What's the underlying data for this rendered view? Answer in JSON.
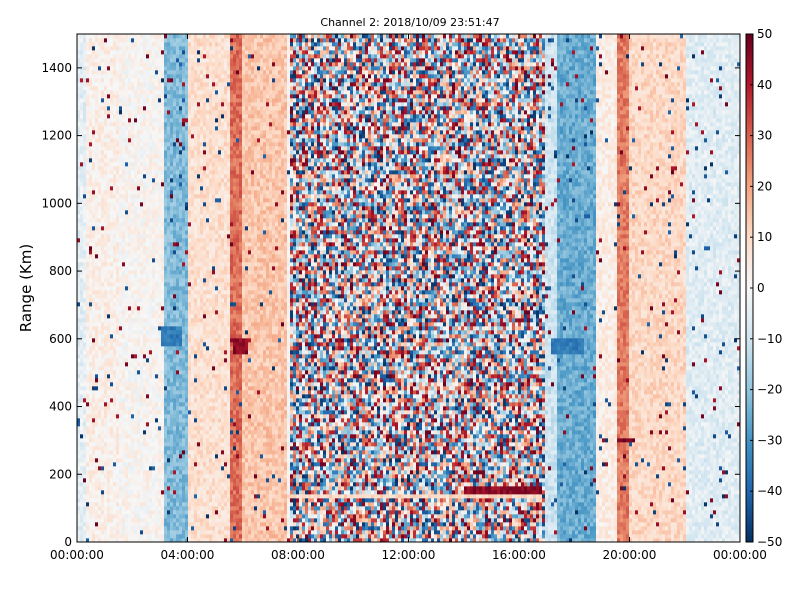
{
  "chart_data": {
    "type": "heatmap",
    "title": "Channel 2: 2018/10/09 23:51:47",
    "xlabel": "",
    "ylabel": "Range (Km)",
    "x_tick_labels": [
      "00:00:00",
      "04:00:00",
      "08:00:00",
      "12:00:00",
      "16:00:00",
      "20:00:00",
      "00:00:00"
    ],
    "x_tick_hours": [
      0,
      4,
      8,
      12,
      16,
      20,
      24
    ],
    "xlim_hours": [
      0,
      24
    ],
    "ylim": [
      0,
      1500
    ],
    "y_ticks": [
      0,
      200,
      400,
      600,
      800,
      1000,
      1200,
      1400
    ],
    "colorbar": {
      "colormap": "RdBu_r",
      "range": [
        -50,
        50
      ],
      "ticks": [
        50,
        40,
        30,
        20,
        10,
        0,
        -10,
        -20,
        -30,
        -40,
        -50
      ]
    },
    "colormap_stops": [
      "#053061",
      "#2166ac",
      "#4393c3",
      "#92c5de",
      "#d1e5f0",
      "#f7f7f7",
      "#fddbc7",
      "#f4a582",
      "#d6604d",
      "#b2182b",
      "#67001f"
    ],
    "background_profile": [
      {
        "hour_start": 0.0,
        "hour_end": 0.3,
        "value": -5
      },
      {
        "hour_start": 0.3,
        "hour_end": 1.5,
        "value": 3
      },
      {
        "hour_start": 1.5,
        "hour_end": 3.1,
        "value": 1
      },
      {
        "hour_start": 3.1,
        "hour_end": 4.0,
        "value": -22
      },
      {
        "hour_start": 4.0,
        "hour_end": 5.5,
        "value": 8
      },
      {
        "hour_start": 5.5,
        "hour_end": 6.0,
        "value": 28
      },
      {
        "hour_start": 6.0,
        "hour_end": 7.6,
        "value": 14
      },
      {
        "hour_start": 7.6,
        "hour_end": 16.8,
        "value": 0
      },
      {
        "hour_start": 16.8,
        "hour_end": 17.4,
        "value": -10
      },
      {
        "hour_start": 17.4,
        "hour_end": 18.8,
        "value": -25
      },
      {
        "hour_start": 18.8,
        "hour_end": 19.5,
        "value": 4
      },
      {
        "hour_start": 19.5,
        "hour_end": 20.0,
        "value": 26
      },
      {
        "hour_start": 20.0,
        "hour_end": 22.0,
        "value": 10
      },
      {
        "hour_start": 22.0,
        "hour_end": 24.0,
        "value": -6
      }
    ],
    "noisy_band": {
      "hour_start": 7.7,
      "hour_end": 16.9,
      "amplitude": 50
    },
    "horizontal_features": [
      {
        "range_km": 135,
        "thickness_km": 20,
        "hour_start": 7.6,
        "hour_end": 16.8,
        "value": 10
      },
      {
        "range_km": 225,
        "thickness_km": 10,
        "hour_start": 7.6,
        "hour_end": 16.0,
        "value": 8
      },
      {
        "range_km": 150,
        "thickness_km": 25,
        "hour_start": 14.0,
        "hour_end": 16.8,
        "value": 45
      },
      {
        "range_km": 580,
        "thickness_km": 40,
        "hour_start": 5.6,
        "hour_end": 6.2,
        "value": 45
      },
      {
        "range_km": 610,
        "thickness_km": 60,
        "hour_start": 3.0,
        "hour_end": 3.8,
        "value": -35
      },
      {
        "range_km": 580,
        "thickness_km": 40,
        "hour_start": 17.2,
        "hour_end": 18.4,
        "value": -35
      },
      {
        "range_km": 300,
        "thickness_km": 20,
        "hour_start": 19.5,
        "hour_end": 20.2,
        "value": 48
      }
    ]
  }
}
